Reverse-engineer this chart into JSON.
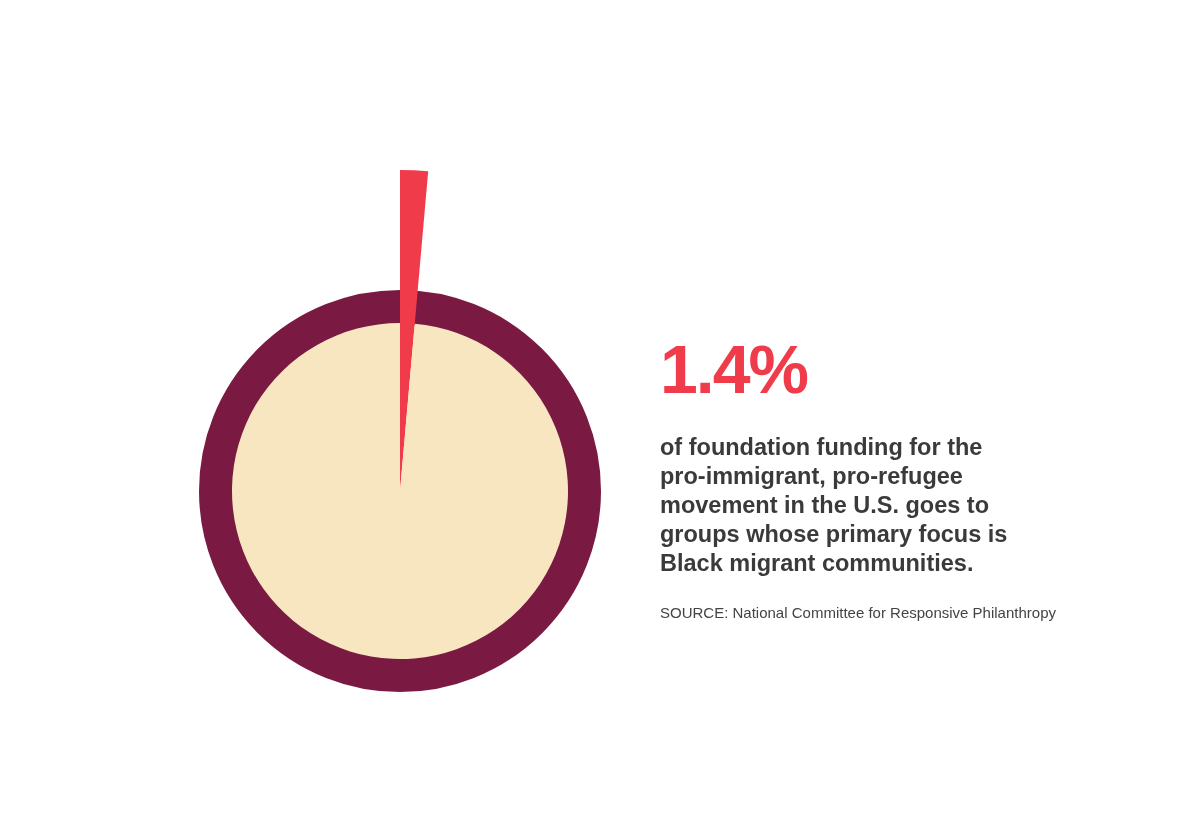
{
  "chart_data": {
    "type": "pie",
    "title": "1.4%",
    "subtitle": "of foundation funding for the pro-immigrant, pro-refugee movement in the U.S. goes to groups whose primary focus is Black migrant communities.",
    "categories": [
      null,
      null
    ],
    "values": [
      1.4,
      98.6
    ],
    "colors": [
      "#f03c4a",
      "#f8e6c0"
    ],
    "annotations": [
      "SOURCE: National Committee for Responsive Philanthropy"
    ]
  }
}
